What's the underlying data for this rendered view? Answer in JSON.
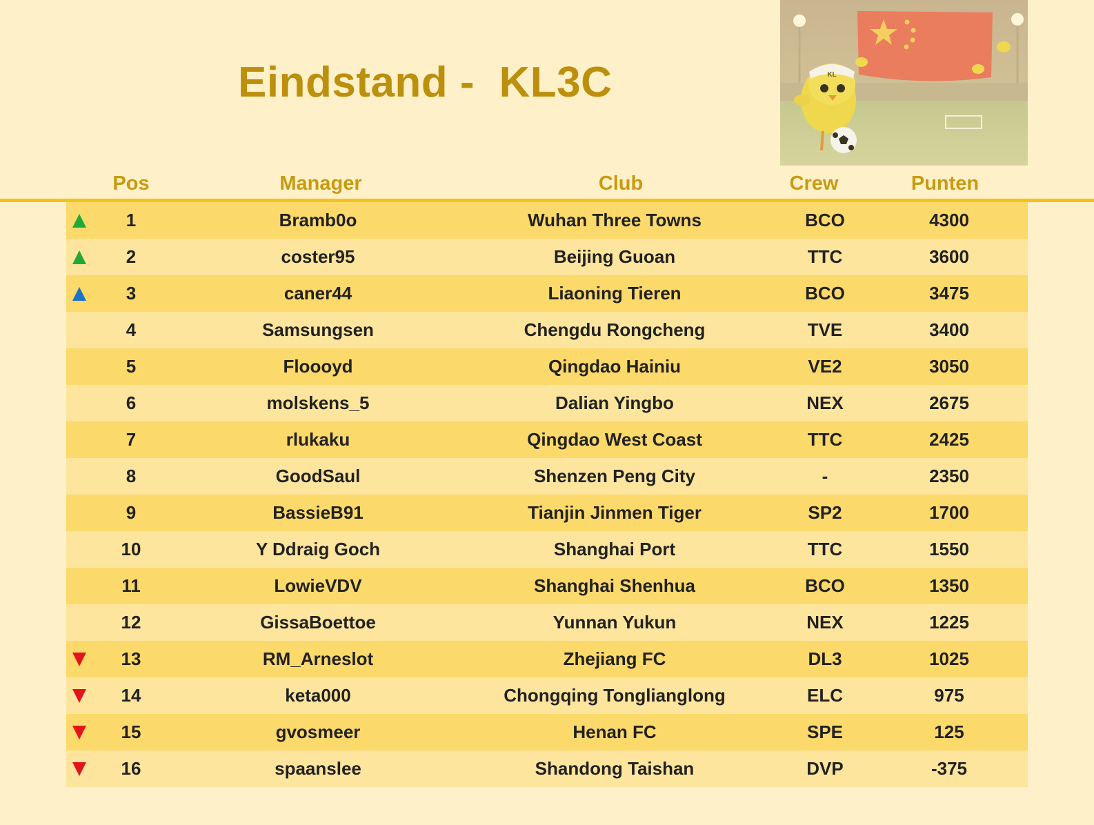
{
  "title": "Eindstand -  KL3C",
  "header_image": {
    "badge_text": "KL",
    "icon": "chick-soccer-flag-illustration"
  },
  "columns": {
    "pos": "Pos",
    "manager": "Manager",
    "club": "Club",
    "crew": "Crew",
    "points": "Punten"
  },
  "colors": {
    "promotion": "#22a83a",
    "playoff": "#1a73c7",
    "relegation": "#e3141b",
    "title": "#bc8f0c",
    "row_dark": "#fcd96b",
    "row_light": "#fde59d"
  },
  "rows": [
    {
      "pos": "1",
      "manager": "Bramb0o",
      "club": "Wuhan Three Towns",
      "crew": "BCO",
      "points": "4300",
      "marker": "promotion"
    },
    {
      "pos": "2",
      "manager": "coster95",
      "club": "Beijing Guoan",
      "crew": "TTC",
      "points": "3600",
      "marker": "promotion"
    },
    {
      "pos": "3",
      "manager": "caner44",
      "club": "Liaoning Tieren",
      "crew": "BCO",
      "points": "3475",
      "marker": "playoff"
    },
    {
      "pos": "4",
      "manager": "Samsungsen",
      "club": "Chengdu Rongcheng",
      "crew": "TVE",
      "points": "3400",
      "marker": "none"
    },
    {
      "pos": "5",
      "manager": "Floooyd",
      "club": "Qingdao Hainiu",
      "crew": "VE2",
      "points": "3050",
      "marker": "none"
    },
    {
      "pos": "6",
      "manager": "molskens_5",
      "club": "Dalian Yingbo",
      "crew": "NEX",
      "points": "2675",
      "marker": "none"
    },
    {
      "pos": "7",
      "manager": "rlukaku",
      "club": "Qingdao West Coast",
      "crew": "TTC",
      "points": "2425",
      "marker": "none"
    },
    {
      "pos": "8",
      "manager": "GoodSaul",
      "club": "Shenzen Peng City",
      "crew": "-",
      "points": "2350",
      "marker": "none"
    },
    {
      "pos": "9",
      "manager": "BassieB91",
      "club": "Tianjin Jinmen Tiger",
      "crew": "SP2",
      "points": "1700",
      "marker": "none"
    },
    {
      "pos": "10",
      "manager": "Y Ddraig Goch",
      "club": "Shanghai Port",
      "crew": "TTC",
      "points": "1550",
      "marker": "none"
    },
    {
      "pos": "11",
      "manager": "LowieVDV",
      "club": "Shanghai Shenhua",
      "crew": "BCO",
      "points": "1350",
      "marker": "none"
    },
    {
      "pos": "12",
      "manager": "GissaBoettoe",
      "club": "Yunnan Yukun",
      "crew": "NEX",
      "points": "1225",
      "marker": "none"
    },
    {
      "pos": "13",
      "manager": "RM_Arneslot",
      "club": "Zhejiang FC",
      "crew": "DL3",
      "points": "1025",
      "marker": "relegation"
    },
    {
      "pos": "14",
      "manager": "keta000",
      "club": "Chongqing Tonglianglong",
      "crew": "ELC",
      "points": "975",
      "marker": "relegation"
    },
    {
      "pos": "15",
      "manager": "gvosmeer",
      "club": "Henan FC",
      "crew": "SPE",
      "points": "125",
      "marker": "relegation"
    },
    {
      "pos": "16",
      "manager": "spaanslee",
      "club": "Shandong Taishan",
      "crew": "DVP",
      "points": "-375",
      "marker": "relegation"
    }
  ]
}
